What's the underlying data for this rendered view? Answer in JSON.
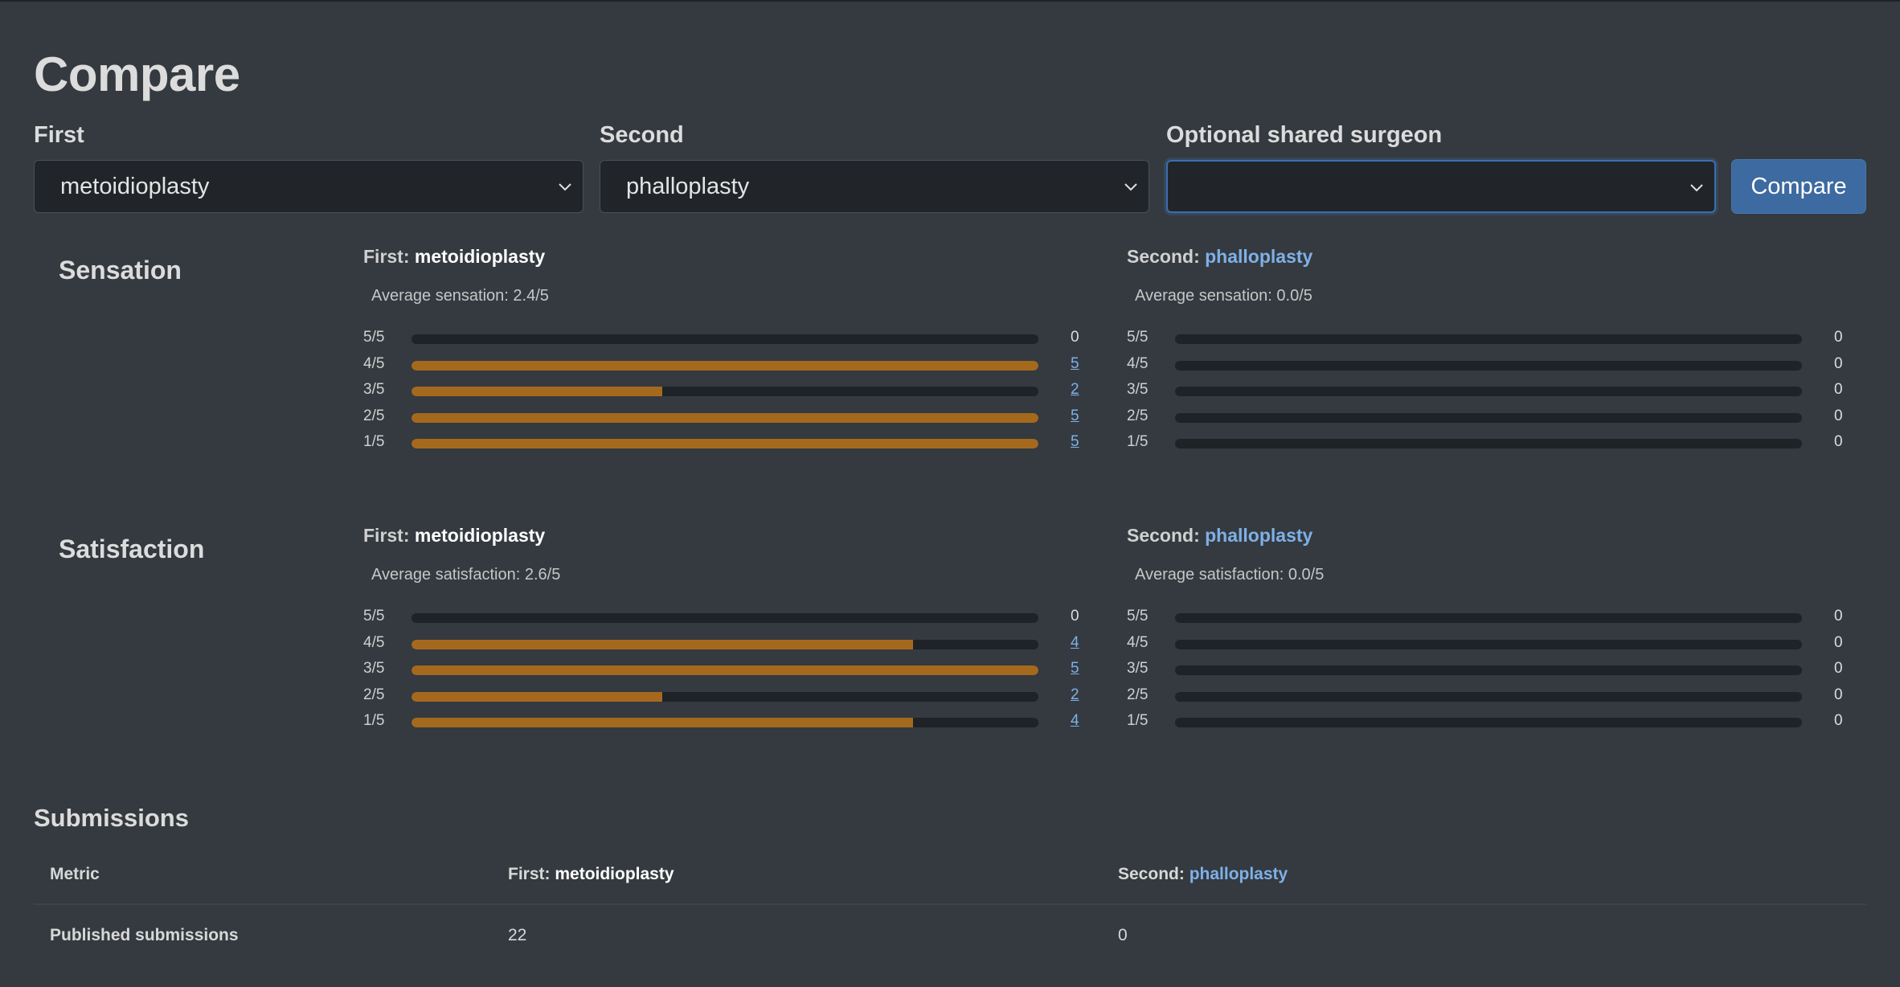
{
  "page": {
    "title": "Compare"
  },
  "filters": {
    "first_label": "First",
    "first_value": "metoidioplasty",
    "second_label": "Second",
    "second_value": "phalloplasty",
    "surgeon_label": "Optional shared surgeon",
    "surgeon_value": "",
    "compare_button": "Compare"
  },
  "sensation": {
    "title": "Sensation",
    "first": {
      "prefix": "First:",
      "name": "metoidioplasty",
      "average": "Average sensation: 2.4/5",
      "rows": [
        {
          "label": "5/5",
          "count": "0",
          "fraction": 0.0
        },
        {
          "label": "4/5",
          "count": "5",
          "fraction": 1.0
        },
        {
          "label": "3/5",
          "count": "2",
          "fraction": 0.4
        },
        {
          "label": "2/5",
          "count": "5",
          "fraction": 1.0
        },
        {
          "label": "1/5",
          "count": "5",
          "fraction": 1.0
        }
      ]
    },
    "second": {
      "prefix": "Second:",
      "name": "phalloplasty",
      "average": "Average sensation: 0.0/5",
      "rows": [
        {
          "label": "5/5",
          "count": "0",
          "fraction": 0.0
        },
        {
          "label": "4/5",
          "count": "0",
          "fraction": 0.0
        },
        {
          "label": "3/5",
          "count": "0",
          "fraction": 0.0
        },
        {
          "label": "2/5",
          "count": "0",
          "fraction": 0.0
        },
        {
          "label": "1/5",
          "count": "0",
          "fraction": 0.0
        }
      ]
    }
  },
  "satisfaction": {
    "title": "Satisfaction",
    "first": {
      "prefix": "First:",
      "name": "metoidioplasty",
      "average": "Average satisfaction: 2.6/5",
      "rows": [
        {
          "label": "5/5",
          "count": "0",
          "fraction": 0.0
        },
        {
          "label": "4/5",
          "count": "4",
          "fraction": 0.8
        },
        {
          "label": "3/5",
          "count": "5",
          "fraction": 1.0
        },
        {
          "label": "2/5",
          "count": "2",
          "fraction": 0.4
        },
        {
          "label": "1/5",
          "count": "4",
          "fraction": 0.8
        }
      ]
    },
    "second": {
      "prefix": "Second:",
      "name": "phalloplasty",
      "average": "Average satisfaction: 0.0/5",
      "rows": [
        {
          "label": "5/5",
          "count": "0",
          "fraction": 0.0
        },
        {
          "label": "4/5",
          "count": "0",
          "fraction": 0.0
        },
        {
          "label": "3/5",
          "count": "0",
          "fraction": 0.0
        },
        {
          "label": "2/5",
          "count": "0",
          "fraction": 0.0
        },
        {
          "label": "1/5",
          "count": "0",
          "fraction": 0.0
        }
      ]
    }
  },
  "submissions": {
    "title": "Submissions",
    "headers": {
      "metric": "Metric",
      "first_prefix": "First:",
      "first_name": "metoidioplasty",
      "second_prefix": "Second:",
      "second_name": "phalloplasty"
    },
    "rows": [
      {
        "metric": "Published submissions",
        "first": "22",
        "second": "0"
      }
    ]
  },
  "colors": {
    "background": "#343a40",
    "bar_fill": "#a5691e",
    "bar_track": "#1f2226",
    "link": "#7fb0e6",
    "button": "#3d6aa0"
  },
  "icons": {
    "select_chevron": "chevron-down-icon"
  }
}
